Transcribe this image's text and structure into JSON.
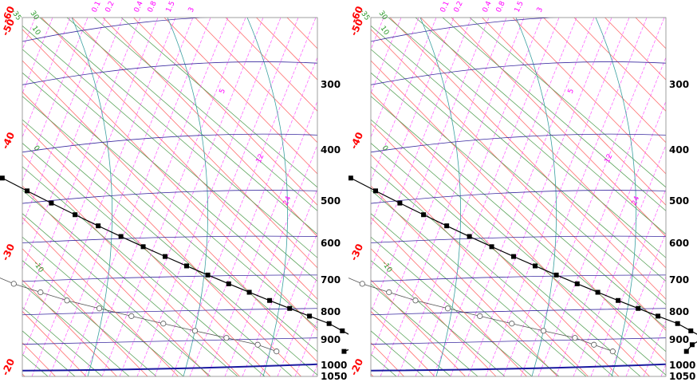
{
  "colors": {
    "isotherm": "#ff6e6e",
    "dry_adiabat": "#4a9a4a",
    "moist_adiabat": "#3aa0a0",
    "mixing_ratio": "#ff55ff",
    "isobar": "#3a2aa0",
    "surface": "#1a1aa0",
    "temperature": "#000000",
    "dewpoint": "#555555",
    "temp_label": "#ff0000",
    "pressure_label": "#000000"
  },
  "chart_data": [
    {
      "type": "line",
      "x_axis": "temperature",
      "y_axis": "pressure",
      "y_scale": "log",
      "ylim": [
        1050,
        250
      ],
      "pressure_levels": [
        "300",
        "400",
        "500",
        "600",
        "700",
        "800",
        "900",
        "1000",
        "1050"
      ],
      "temperature_labels": [
        "-60",
        "-50",
        "-40",
        "-30",
        "-20"
      ],
      "mixing_ratio_top_labels": [
        "0.1",
        "0.2",
        "0.4",
        "0.8",
        "1.5",
        "3"
      ],
      "mixing_ratio_inner_labels": [
        "5",
        "12",
        "24"
      ],
      "dry_adiabat_labels": [
        "-35",
        "30",
        "10",
        "0",
        "-10"
      ],
      "series": [
        {
          "marker": "filled-square",
          "points": [
            [
              -50,
              250
            ],
            [
              -53,
              275
            ],
            [
              -53,
              300
            ],
            [
              -52,
              325
            ],
            [
              -50,
              350
            ],
            [
              -48,
              370
            ],
            [
              -46,
              400
            ],
            [
              -45,
              425
            ],
            [
              -43.5,
              450
            ],
            [
              -42,
              475
            ],
            [
              -40,
              500
            ],
            [
              -38,
              525
            ],
            [
              -36,
              550
            ],
            [
              -34,
              575
            ],
            [
              -32,
              600
            ],
            [
              -30,
              625
            ],
            [
              -28,
              650
            ],
            [
              -26,
              675
            ],
            [
              -24,
              700
            ],
            [
              -22,
              725
            ],
            [
              -20,
              750
            ],
            [
              -18,
              775
            ],
            [
              -16,
              800
            ],
            [
              -14,
              825
            ],
            [
              -12,
              850
            ],
            [
              -11,
              875
            ],
            [
              -10,
              900
            ],
            [
              -10,
              925
            ],
            [
              -14,
              950
            ]
          ]
        },
        {
          "marker": "open-circle",
          "points": [
            [
              -88,
              300
            ],
            [
              -85,
              325
            ],
            [
              -81,
              350
            ],
            [
              -79,
              375
            ],
            [
              -77,
              400
            ],
            [
              -76,
              425
            ],
            [
              -75,
              450
            ],
            [
              -74,
              475
            ],
            [
              -72,
              500
            ],
            [
              -70,
              525
            ],
            [
              -68,
              550
            ],
            [
              -67,
              575
            ],
            [
              -66,
              600
            ],
            [
              -65,
              625
            ],
            [
              -63,
              650
            ],
            [
              -61,
              675
            ],
            [
              -59,
              700
            ],
            [
              -57,
              725
            ],
            [
              -54,
              750
            ],
            [
              -51,
              775
            ],
            [
              -47,
              800
            ],
            [
              -43,
              825
            ],
            [
              -39,
              850
            ],
            [
              -35,
              875
            ],
            [
              -31,
              900
            ],
            [
              -27,
              925
            ],
            [
              -25,
              950
            ]
          ]
        }
      ]
    },
    {
      "type": "line",
      "x_axis": "temperature",
      "y_axis": "pressure",
      "y_scale": "log",
      "ylim": [
        1050,
        250
      ],
      "pressure_levels": [
        "300",
        "400",
        "500",
        "600",
        "700",
        "800",
        "900",
        "1000",
        "1050"
      ],
      "temperature_labels": [
        "-60",
        "-50",
        "-40",
        "-30",
        "-20"
      ],
      "mixing_ratio_top_labels": [
        "0.1",
        "0.2",
        "0.4",
        "0.8",
        "1.5",
        "3"
      ],
      "mixing_ratio_inner_labels": [
        "5",
        "12",
        "24"
      ],
      "dry_adiabat_labels": [
        "-35",
        "30",
        "10",
        "0",
        "-10"
      ],
      "series": [
        {
          "marker": "filled-square",
          "points": [
            [
              -50,
              250
            ],
            [
              -53,
              275
            ],
            [
              -53,
              300
            ],
            [
              -52,
              325
            ],
            [
              -50,
              350
            ],
            [
              -48,
              370
            ],
            [
              -46,
              400
            ],
            [
              -45,
              425
            ],
            [
              -43.5,
              450
            ],
            [
              -42,
              475
            ],
            [
              -40,
              500
            ],
            [
              -38,
              525
            ],
            [
              -36,
              550
            ],
            [
              -34,
              575
            ],
            [
              -32,
              600
            ],
            [
              -30,
              625
            ],
            [
              -28,
              650
            ],
            [
              -26,
              675
            ],
            [
              -24,
              700
            ],
            [
              -22,
              725
            ],
            [
              -20,
              750
            ],
            [
              -18,
              775
            ],
            [
              -16,
              800
            ],
            [
              -14,
              825
            ],
            [
              -12,
              850
            ],
            [
              -11,
              875
            ],
            [
              -10,
              900
            ],
            [
              -13,
              925
            ],
            [
              -15,
              950
            ]
          ]
        },
        {
          "marker": "open-circle",
          "points": [
            [
              -88,
              300
            ],
            [
              -85,
              325
            ],
            [
              -81,
              350
            ],
            [
              -79,
              375
            ],
            [
              -77,
              400
            ],
            [
              -76,
              425
            ],
            [
              -75,
              450
            ],
            [
              -74,
              475
            ],
            [
              -72,
              500
            ],
            [
              -70,
              525
            ],
            [
              -68,
              550
            ],
            [
              -67,
              575
            ],
            [
              -66,
              600
            ],
            [
              -65,
              625
            ],
            [
              -63,
              650
            ],
            [
              -61,
              675
            ],
            [
              -59,
              700
            ],
            [
              -57,
              725
            ],
            [
              -54,
              750
            ],
            [
              -51,
              775
            ],
            [
              -47,
              800
            ],
            [
              -43,
              825
            ],
            [
              -39,
              850
            ],
            [
              -35,
              875
            ],
            [
              -31,
              900
            ],
            [
              -29,
              925
            ],
            [
              -27,
              950
            ]
          ]
        }
      ]
    }
  ]
}
